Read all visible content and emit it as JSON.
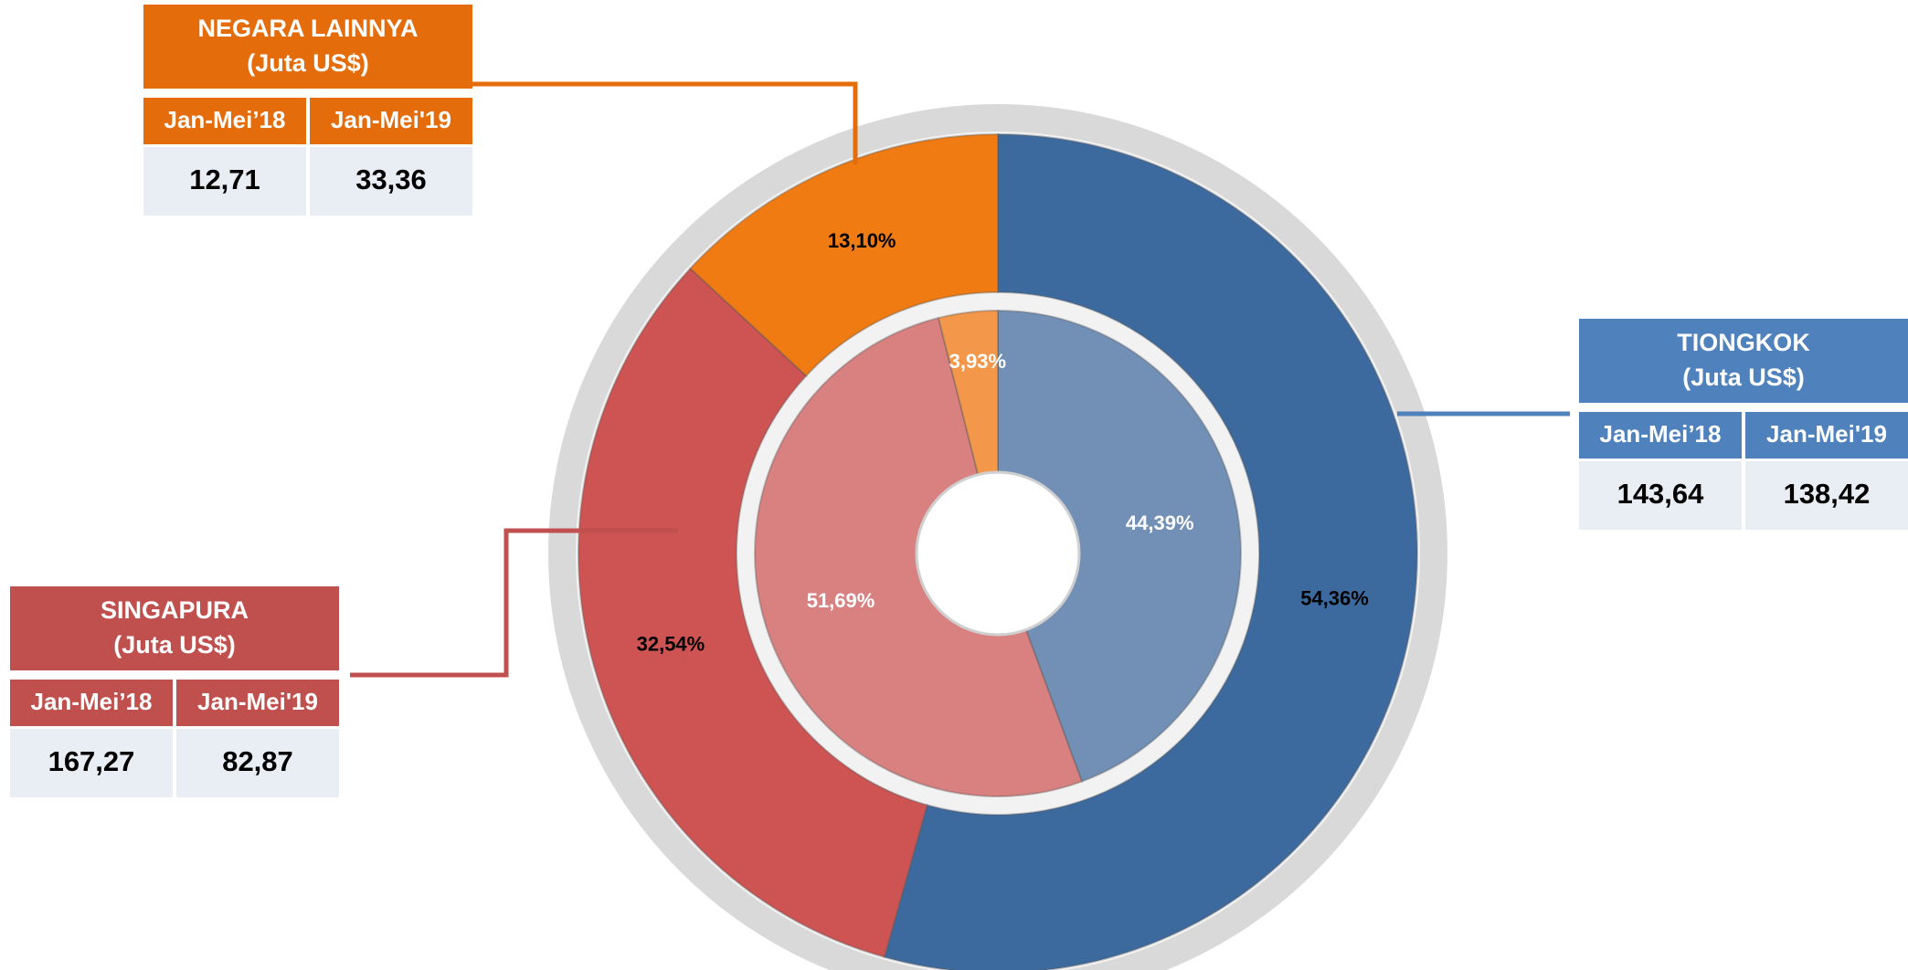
{
  "chart_data": {
    "type": "donut",
    "categories": [
      "TIONGKOK",
      "SINGAPURA",
      "NEGARA LAINNYA"
    ],
    "series": [
      {
        "ring": "outer",
        "values": [
          54.36,
          32.54,
          13.1
        ],
        "value_labels": [
          "54,36%",
          "32,54%",
          "13,10%"
        ],
        "colors": [
          "#3d6a9e",
          "#cd5452",
          "#f07b12"
        ]
      },
      {
        "ring": "inner",
        "values": [
          44.39,
          51.69,
          3.93
        ],
        "value_labels": [
          "44,39%",
          "51,69%",
          "3,93%"
        ],
        "colors": [
          "#7290b6",
          "#d98080",
          "#f3974a"
        ]
      }
    ],
    "callouts": [
      {
        "color": "#4f81bd",
        "unit": "(Juta US$)",
        "headers": [
          "Jan-Mei’18",
          "Jan-Mei'19"
        ],
        "cells": [
          "143,64",
          "138,42"
        ]
      },
      {
        "color": "#c0504d",
        "unit": "(Juta US$)",
        "headers": [
          "Jan-Mei’18",
          "Jan-Mei'19"
        ],
        "cells": [
          "167,27",
          "82,87"
        ]
      },
      {
        "color": "#e46c0a",
        "unit": "(Juta US$)",
        "headers": [
          "Jan-Mei’18",
          "Jan-Mei'19"
        ],
        "cells": [
          "12,71",
          "33,36"
        ]
      }
    ]
  }
}
